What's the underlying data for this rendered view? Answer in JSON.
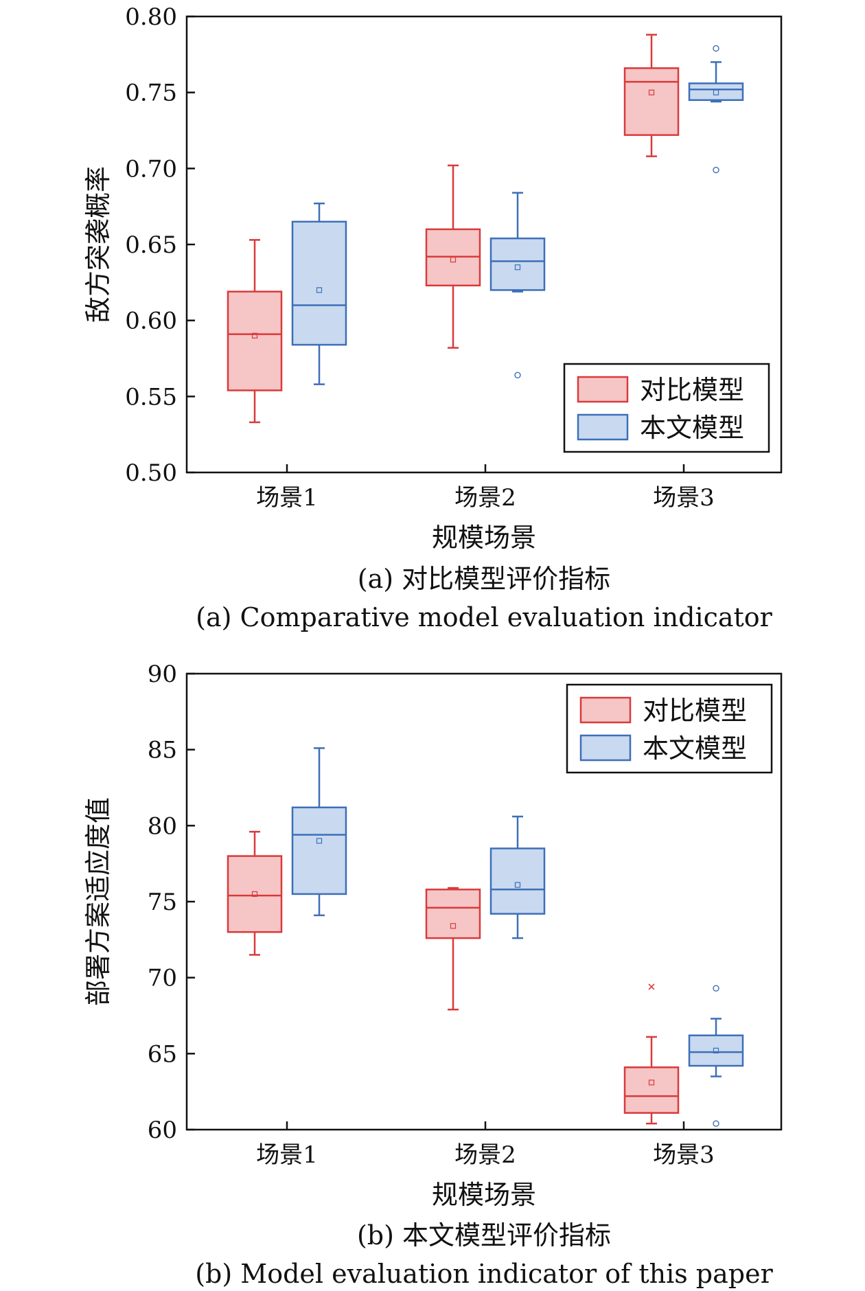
{
  "chart_data": [
    {
      "id": "a",
      "type": "box",
      "xlabel": "规模场景",
      "ylabel": "敌方突袭概率",
      "ylim": [
        0.5,
        0.8
      ],
      "yticks": [
        "0.50",
        "0.55",
        "0.60",
        "0.65",
        "0.70",
        "0.75",
        "0.80"
      ],
      "yticks_values": [
        0.5,
        0.55,
        0.6,
        0.65,
        0.7,
        0.75,
        0.8
      ],
      "categories": [
        "场景1",
        "场景2",
        "场景3"
      ],
      "caption_cn": "(a) 对比模型评价指标",
      "caption_en": "(a) Comparative model evaluation indicator",
      "legend_position": "bottom-right",
      "series": [
        {
          "name": "对比模型",
          "color": "#d93a3a",
          "fill": "#f6c5c5",
          "boxes": [
            {
              "min": 0.533,
              "q1": 0.554,
              "median": 0.591,
              "q3": 0.619,
              "max": 0.653,
              "mean": 0.59,
              "outliers": []
            },
            {
              "min": 0.582,
              "q1": 0.623,
              "median": 0.642,
              "q3": 0.66,
              "max": 0.702,
              "mean": 0.64,
              "outliers": []
            },
            {
              "min": 0.708,
              "q1": 0.722,
              "median": 0.757,
              "q3": 0.766,
              "max": 0.788,
              "mean": 0.75,
              "outliers": []
            }
          ]
        },
        {
          "name": "本文模型",
          "color": "#3d6fb8",
          "fill": "#c8d9f0",
          "boxes": [
            {
              "min": 0.558,
              "q1": 0.584,
              "median": 0.61,
              "q3": 0.665,
              "max": 0.677,
              "mean": 0.62,
              "outliers": []
            },
            {
              "min": 0.619,
              "q1": 0.62,
              "median": 0.639,
              "q3": 0.654,
              "max": 0.684,
              "mean": 0.635,
              "outliers": [
                0.564
              ]
            },
            {
              "min": 0.744,
              "q1": 0.745,
              "median": 0.752,
              "q3": 0.756,
              "max": 0.77,
              "mean": 0.75,
              "outliers": [
                0.779,
                0.699
              ]
            }
          ]
        }
      ]
    },
    {
      "id": "b",
      "type": "box",
      "xlabel": "规模场景",
      "ylabel": "部署方案适应度值",
      "ylim": [
        60,
        90
      ],
      "yticks": [
        "60",
        "65",
        "70",
        "75",
        "80",
        "85",
        "90"
      ],
      "yticks_values": [
        60,
        65,
        70,
        75,
        80,
        85,
        90
      ],
      "categories": [
        "场景1",
        "场景2",
        "场景3"
      ],
      "caption_cn": "(b) 本文模型评价指标",
      "caption_en": "(b) Model evaluation indicator of this paper",
      "legend_position": "top-right",
      "series": [
        {
          "name": "对比模型",
          "color": "#d93a3a",
          "fill": "#f6c5c5",
          "boxes": [
            {
              "min": 71.5,
              "q1": 73.0,
              "median": 75.4,
              "q3": 78.0,
              "max": 79.6,
              "mean": 75.5,
              "outliers": []
            },
            {
              "min": 67.9,
              "q1": 72.6,
              "median": 74.6,
              "q3": 75.8,
              "max": 75.9,
              "mean": 73.4,
              "outliers": []
            },
            {
              "min": 60.4,
              "q1": 61.1,
              "median": 62.2,
              "q3": 64.1,
              "max": 66.1,
              "mean": 63.1,
              "outliers": [
                69.4
              ]
            }
          ]
        },
        {
          "name": "本文模型",
          "color": "#3d6fb8",
          "fill": "#c8d9f0",
          "boxes": [
            {
              "min": 74.1,
              "q1": 75.5,
              "median": 79.4,
              "q3": 81.2,
              "max": 85.1,
              "mean": 79.0,
              "outliers": []
            },
            {
              "min": 72.6,
              "q1": 74.2,
              "median": 75.8,
              "q3": 78.5,
              "max": 80.6,
              "mean": 76.1,
              "outliers": []
            },
            {
              "min": 63.5,
              "q1": 64.2,
              "median": 65.1,
              "q3": 66.2,
              "max": 67.3,
              "mean": 65.2,
              "outliers": [
                69.3,
                60.4
              ]
            }
          ]
        }
      ]
    }
  ]
}
